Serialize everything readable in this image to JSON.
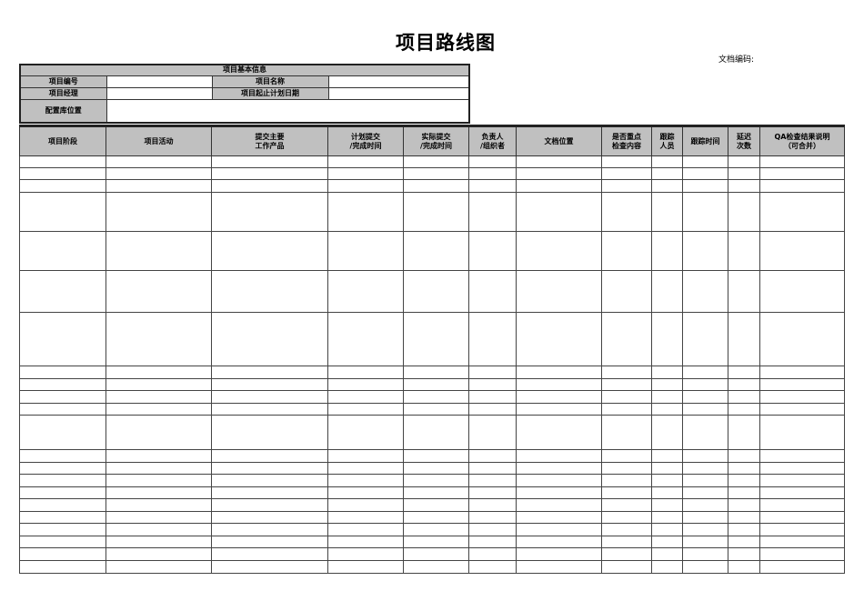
{
  "title": "项目路线图",
  "doc_code_label": "文档编码:",
  "info": {
    "section_title": "项目基本信息",
    "project_no_label": "项目编号",
    "project_name_label": "项目名称",
    "project_manager_label": "项目经理",
    "plan_dates_label": "项目起止计划日期",
    "config_repo_label": "配置库位置"
  },
  "columns": [
    "项目阶段",
    "项目活动",
    "提交主要\n工作产品",
    "计划提交\n/完成时间",
    "实际提交\n/完成时间",
    "负责人\n/组织者",
    "文档位置",
    "是否重点\n检查内容",
    "跟踪\n人员",
    "跟踪时间",
    "延迟\n次数",
    "QA检查结果说明\n（可合并）"
  ]
}
